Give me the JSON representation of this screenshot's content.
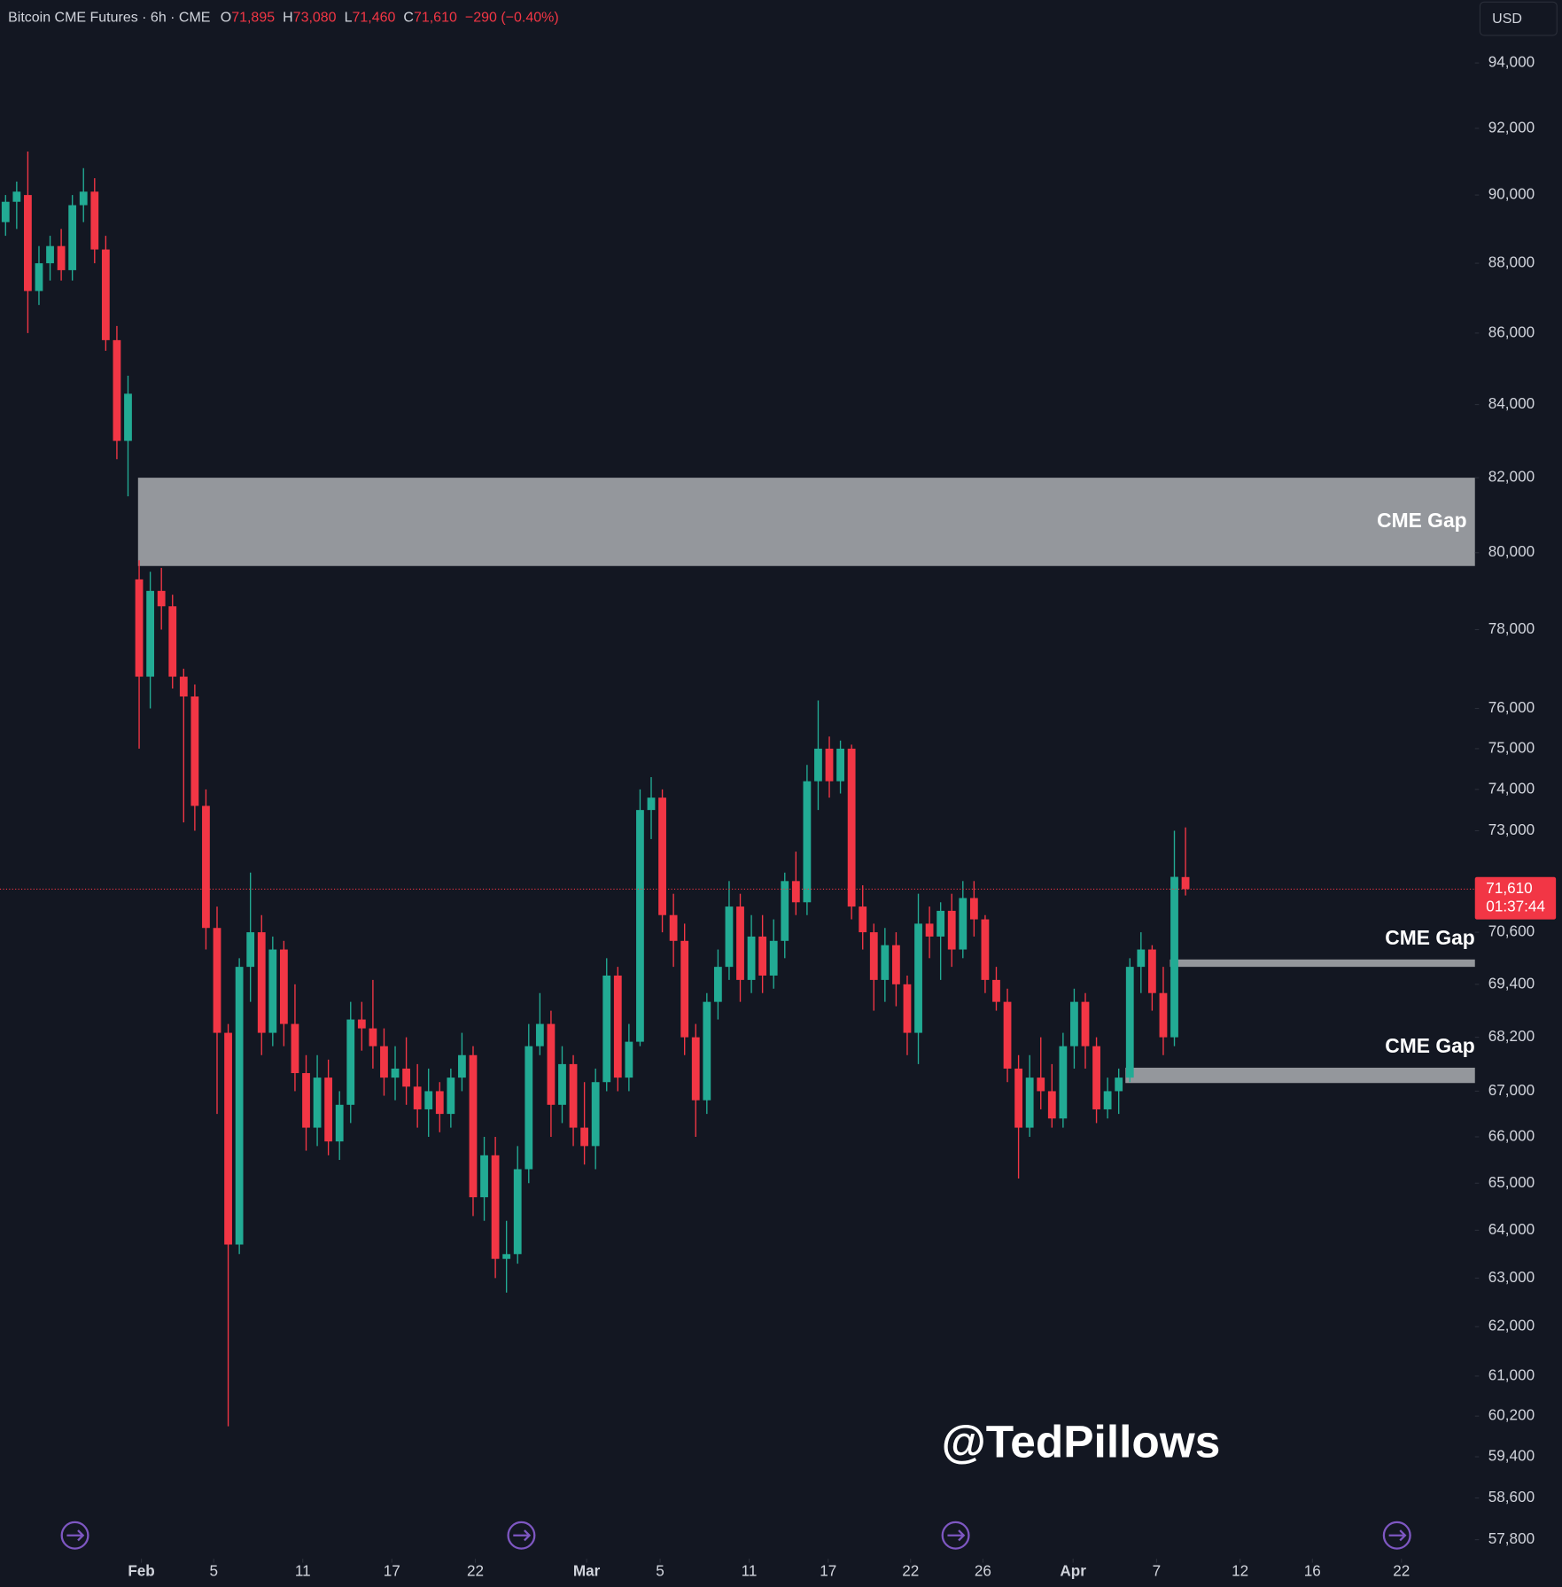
{
  "chart_data": {
    "type": "candlestick",
    "title": "Bitcoin CME Futures · 6h · CME",
    "ohlc": [
      {
        "key": "O",
        "value": "71,895"
      },
      {
        "key": "H",
        "value": "73,080"
      },
      {
        "key": "L",
        "value": "71,460"
      },
      {
        "key": "C",
        "value": "71,610"
      }
    ],
    "change": "−290 (−0.40%)",
    "currency": "USD",
    "watermark": "@TedPillows",
    "log_scale": true,
    "grid": false,
    "up_color": "#22ab94",
    "down_color": "#f23645",
    "ylim": [
      57440,
      95970
    ],
    "yticks": [
      {
        "value": 94000,
        "label": "94,000"
      },
      {
        "value": 92000,
        "label": "92,000"
      },
      {
        "value": 90000,
        "label": "90,000"
      },
      {
        "value": 88000,
        "label": "88,000"
      },
      {
        "value": 86000,
        "label": "86,000"
      },
      {
        "value": 84000,
        "label": "84,000"
      },
      {
        "value": 82000,
        "label": "82,000"
      },
      {
        "value": 80000,
        "label": "80,000"
      },
      {
        "value": 78000,
        "label": "78,000"
      },
      {
        "value": 76000,
        "label": "76,000"
      },
      {
        "value": 75000,
        "label": "75,000"
      },
      {
        "value": 74000,
        "label": "74,000"
      },
      {
        "value": 73000,
        "label": "73,000"
      },
      {
        "value": 70600,
        "label": "70,600"
      },
      {
        "value": 69400,
        "label": "69,400"
      },
      {
        "value": 68200,
        "label": "68,200"
      },
      {
        "value": 67000,
        "label": "67,000"
      },
      {
        "value": 66000,
        "label": "66,000"
      },
      {
        "value": 65000,
        "label": "65,000"
      },
      {
        "value": 64000,
        "label": "64,000"
      },
      {
        "value": 63000,
        "label": "63,000"
      },
      {
        "value": 62000,
        "label": "62,000"
      },
      {
        "value": 61000,
        "label": "61,000"
      },
      {
        "value": 60200,
        "label": "60,200"
      },
      {
        "value": 59400,
        "label": "59,400"
      },
      {
        "value": 58600,
        "label": "58,600"
      },
      {
        "value": 57800,
        "label": "57,800"
      }
    ],
    "xlim": [
      -0.5,
      132
    ],
    "xticks": [
      {
        "value": 12.2,
        "label": "Feb"
      },
      {
        "value": 18.7,
        "label": "5"
      },
      {
        "value": 26.7,
        "label": "11"
      },
      {
        "value": 34.7,
        "label": "17"
      },
      {
        "value": 42.2,
        "label": "22"
      },
      {
        "value": 52.2,
        "label": "Mar"
      },
      {
        "value": 58.8,
        "label": "5"
      },
      {
        "value": 66.8,
        "label": "11"
      },
      {
        "value": 73.9,
        "label": "17"
      },
      {
        "value": 81.3,
        "label": "22"
      },
      {
        "value": 87.8,
        "label": "26"
      },
      {
        "value": 95.9,
        "label": "Apr"
      },
      {
        "value": 103.4,
        "label": "7"
      },
      {
        "value": 110.9,
        "label": "12"
      },
      {
        "value": 117.4,
        "label": "16"
      },
      {
        "value": 125.4,
        "label": "22"
      }
    ],
    "open": [
      89200,
      89800,
      90000,
      87200,
      88000,
      88500,
      87800,
      89700,
      90100,
      88400,
      85800,
      83000,
      79300,
      76800,
      79000,
      78600,
      76800,
      76300,
      73600,
      70700,
      68300,
      63700,
      69800,
      70600,
      68300,
      70200,
      68500,
      67400,
      66200,
      67300,
      65900,
      66700,
      68600,
      68400,
      68000,
      67300,
      67500,
      67100,
      66600,
      67000,
      66500,
      67300,
      67800,
      64700,
      65600,
      63400,
      63500,
      65300,
      68000,
      68500,
      66700,
      67600,
      66200,
      65800,
      67200,
      69600,
      67300,
      68100,
      73500,
      73800,
      71000,
      70400,
      68200,
      66800,
      69000,
      69800,
      71200,
      69500,
      70500,
      69600,
      70400,
      71800,
      71300,
      74200,
      75000,
      74200,
      75000,
      71200,
      70600,
      69500,
      70300,
      69400,
      68300,
      70800,
      70500,
      71100,
      70200,
      71400,
      70900,
      69500,
      69000,
      67500,
      66200,
      67300,
      67000,
      66400,
      68000,
      69000,
      68000,
      66600,
      67000,
      67300,
      69800,
      70200,
      69200,
      68200,
      71895
    ],
    "high": [
      90000,
      90400,
      91300,
      88500,
      88800,
      89000,
      90000,
      90800,
      90500,
      88800,
      86200,
      84800,
      79800,
      79500,
      79600,
      78900,
      77000,
      76600,
      74000,
      71200,
      68500,
      70000,
      72000,
      71000,
      70500,
      70400,
      69400,
      67800,
      67800,
      67700,
      67000,
      69000,
      69000,
      69500,
      68400,
      68000,
      68200,
      67600,
      67500,
      67200,
      67500,
      68300,
      68000,
      66000,
      66000,
      64200,
      65800,
      68500,
      69200,
      68800,
      68000,
      67800,
      67200,
      67500,
      70000,
      69800,
      68500,
      74000,
      74300,
      74000,
      71500,
      70800,
      68500,
      69200,
      70200,
      71800,
      71500,
      71000,
      71000,
      70900,
      72000,
      72500,
      74600,
      76200,
      75300,
      75200,
      75100,
      71700,
      70800,
      70700,
      70600,
      69600,
      71500,
      71200,
      71300,
      71500,
      71800,
      71800,
      71000,
      69800,
      69300,
      67800,
      67800,
      68200,
      67600,
      68300,
      69300,
      69200,
      68200,
      67300,
      67500,
      70000,
      70600,
      70300,
      69800,
      73000,
      73080
    ],
    "low": [
      88800,
      89000,
      86000,
      86800,
      87500,
      87500,
      87500,
      89200,
      88000,
      85500,
      82500,
      81500,
      75000,
      76000,
      78000,
      76500,
      73200,
      73000,
      70200,
      66500,
      60000,
      63500,
      69000,
      67800,
      68000,
      68000,
      67000,
      65700,
      65800,
      65600,
      65500,
      66300,
      67900,
      67500,
      66900,
      66800,
      66700,
      66200,
      66000,
      66100,
      66200,
      67000,
      64300,
      64200,
      63000,
      62700,
      63300,
      65000,
      67800,
      66000,
      66300,
      65800,
      65400,
      65300,
      67000,
      67000,
      67000,
      68000,
      72800,
      70600,
      69800,
      67800,
      66000,
      66500,
      68600,
      69500,
      69000,
      69200,
      69200,
      69300,
      70000,
      71000,
      71000,
      73500,
      73800,
      73900,
      70900,
      70200,
      68800,
      69000,
      68900,
      67800,
      67600,
      70000,
      69500,
      69800,
      70000,
      70500,
      69200,
      68800,
      67200,
      65100,
      66000,
      66600,
      66200,
      66200,
      67500,
      67500,
      66300,
      66400,
      66500,
      67200,
      69200,
      68800,
      67800,
      68000,
      71460
    ],
    "close": [
      89800,
      90100,
      87200,
      88000,
      88500,
      87800,
      89700,
      90100,
      88400,
      85800,
      83000,
      84300,
      76800,
      79000,
      78600,
      76800,
      76300,
      73600,
      70700,
      68300,
      63700,
      69800,
      70600,
      68300,
      70200,
      68500,
      67400,
      66200,
      67300,
      65900,
      66700,
      68600,
      68400,
      68000,
      67300,
      67500,
      67100,
      66600,
      67000,
      66500,
      67300,
      67800,
      64700,
      65600,
      63400,
      63500,
      65300,
      68000,
      68500,
      66700,
      67600,
      66200,
      65800,
      67200,
      69600,
      67300,
      68100,
      73500,
      73800,
      71000,
      70400,
      68200,
      66800,
      69000,
      69800,
      71200,
      69500,
      70500,
      69600,
      70400,
      71800,
      71300,
      74200,
      75000,
      74200,
      75000,
      71200,
      70600,
      69500,
      70300,
      69400,
      68300,
      70800,
      70500,
      71100,
      70200,
      71400,
      70900,
      69500,
      69000,
      67500,
      66200,
      67300,
      67000,
      66400,
      68000,
      69000,
      68000,
      66600,
      67000,
      67300,
      69800,
      70200,
      69200,
      68200,
      71900,
      71610
    ],
    "zones": [
      {
        "label": "CME Gap",
        "top": 82000,
        "bottom": 79650,
        "start": 11.9
      },
      {
        "label": "CME Gap",
        "top": 69970,
        "bottom": 69800,
        "start": 104.6
      },
      {
        "label": "CME Gap",
        "top": 67520,
        "bottom": 67180,
        "start": 100.6
      }
    ],
    "price_tag": {
      "value": 71610,
      "label": "71,610"
    },
    "countdown": "01:37:44"
  }
}
